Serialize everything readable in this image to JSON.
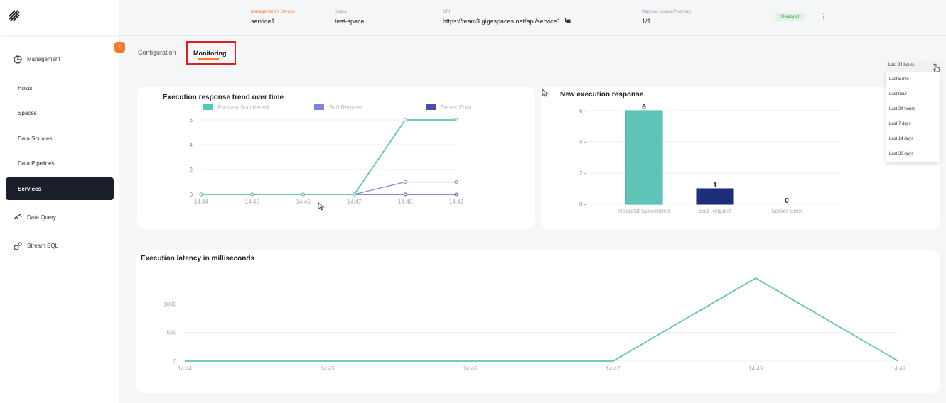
{
  "header": {
    "breadcrumb": "Management > Service",
    "service_name": "service1",
    "space_caption": "Space",
    "space_value": "test-space",
    "url_caption": "URI",
    "url_value": "https://team3.gigaspaces.net/api/service1",
    "replicas_caption": "Replicas (Actual/Planned)",
    "replicas_value": "1/1",
    "status": "Deployed"
  },
  "sidebar": {
    "management": "Management",
    "items": [
      "Hosts",
      "Spaces",
      "Data Sources",
      "Data Pipelines"
    ],
    "active": "Services",
    "data_query": "Data Query",
    "stream_sql": "Stream SQL"
  },
  "tabs": {
    "configuration": "Configuration",
    "monitoring": "Monitoring"
  },
  "time_range": {
    "selected": "Last 24 hours",
    "options": [
      "Last 5 min",
      "Last hour",
      "Last 24 hours",
      "Last 7 days",
      "Last 14 days",
      "Last 30 days"
    ]
  },
  "colors": {
    "succeeded": "#5fc4b8",
    "bad_request": "#7f86d9",
    "server_error": "#4a4fa6",
    "bad_bar": "#1f2e7a",
    "accent": "#f47c2c"
  },
  "chart_data": [
    {
      "type": "line",
      "title": "Execution response trend over time",
      "x": [
        "14:44",
        "14:45",
        "14:46",
        "14:47",
        "14:48",
        "14:49"
      ],
      "series": [
        {
          "name": "Request Succeeded",
          "values": [
            0,
            0,
            0,
            0,
            6,
            6
          ]
        },
        {
          "name": "Bad Request",
          "values": [
            0,
            0,
            0,
            0,
            1,
            1
          ]
        },
        {
          "name": "Server Error",
          "values": [
            0,
            0,
            0,
            0,
            0,
            0
          ]
        }
      ],
      "yticks": [
        "0",
        "2",
        "4",
        "6"
      ],
      "ylim": [
        0,
        6
      ],
      "legend": "top"
    },
    {
      "type": "bar",
      "title": "New execution response",
      "categories": [
        "Request Succeeded",
        "Bad Request",
        "Server Error"
      ],
      "values": [
        6,
        1,
        0
      ],
      "yticks": [
        "0 -",
        "2 -",
        "4 -",
        "6 -"
      ],
      "ylim": [
        0,
        6
      ]
    },
    {
      "type": "line",
      "title": "Execution latency in milliseconds",
      "x": [
        "14:44",
        "14:45",
        "14:46",
        "14:47",
        "14:48",
        "14:49"
      ],
      "series": [
        {
          "values": [
            0,
            0,
            0,
            0,
            1450,
            0
          ]
        }
      ],
      "yticks": [
        "0",
        "500",
        "1000"
      ],
      "ylim": [
        0,
        1500
      ]
    }
  ]
}
